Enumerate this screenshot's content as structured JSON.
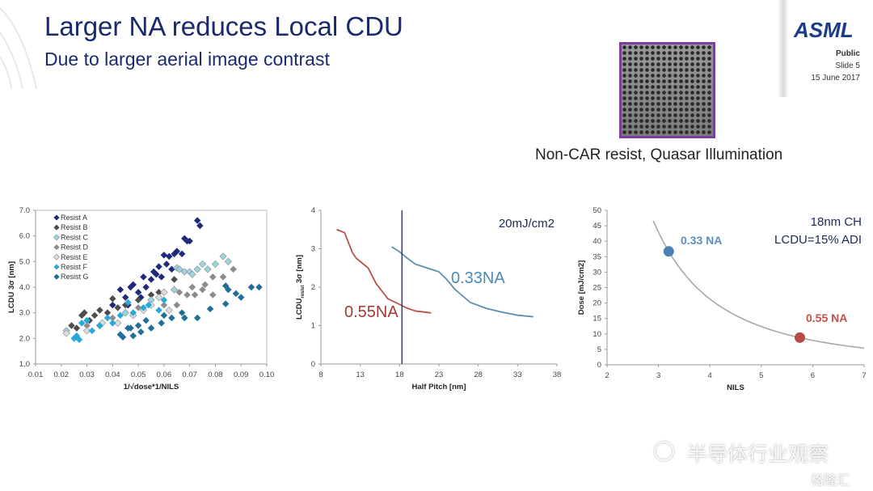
{
  "header": {
    "title": "Larger NA reduces Local CDU",
    "subtitle": "Due to larger aerial image contrast",
    "logo": "ASML",
    "classification": "Public",
    "slide": "Slide 5",
    "date": "15 June 2017"
  },
  "image_caption": "Non-CAR resist, Quasar Illumination",
  "watermark": {
    "channel": "半导体行业观察",
    "source": "格隆汇"
  },
  "colors": {
    "title": "#1b2a6b",
    "na033": "#4a82b4",
    "na055": "#b0403a",
    "frame": "#7b3f9a"
  },
  "chart_data": [
    {
      "type": "scatter",
      "xlabel": "1/√dose*1/NILS",
      "ylabel": "LCDU 3σ [nm]",
      "xlim": [
        0.01,
        0.1
      ],
      "ylim": [
        1.0,
        7.0
      ],
      "xticks": [
        "0.01",
        "0.02",
        "0.03",
        "0.04",
        "0.05",
        "0.06",
        "0.07",
        "0.08",
        "0.09",
        "0.10"
      ],
      "yticks": [
        "1.0",
        "2.0",
        "3.0",
        "4.0",
        "5.0",
        "6.0",
        "7.0"
      ],
      "legend_position": "top-left",
      "series": [
        {
          "name": "Resist A",
          "color": "#1f2a7a",
          "points": [
            [
              0.04,
              3.3
            ],
            [
              0.043,
              3.9
            ],
            [
              0.045,
              3.6
            ],
            [
              0.046,
              3.3
            ],
            [
              0.047,
              4.0
            ],
            [
              0.048,
              4.1
            ],
            [
              0.05,
              3.8
            ],
            [
              0.051,
              3.6
            ],
            [
              0.052,
              4.4
            ],
            [
              0.053,
              4.0
            ],
            [
              0.055,
              4.3
            ],
            [
              0.056,
              4.6
            ],
            [
              0.057,
              4.5
            ],
            [
              0.058,
              4.8
            ],
            [
              0.059,
              4.4
            ],
            [
              0.06,
              5.25
            ],
            [
              0.061,
              4.9
            ],
            [
              0.062,
              5.2
            ],
            [
              0.063,
              4.7
            ],
            [
              0.064,
              5.3
            ],
            [
              0.065,
              5.4
            ],
            [
              0.067,
              5.3
            ],
            [
              0.068,
              5.9
            ],
            [
              0.069,
              5.8
            ],
            [
              0.07,
              5.8
            ],
            [
              0.073,
              6.6
            ],
            [
              0.074,
              6.4
            ]
          ]
        },
        {
          "name": "Resist B",
          "color": "#4d4d4d",
          "points": [
            [
              0.024,
              2.5
            ],
            [
              0.026,
              2.4
            ],
            [
              0.028,
              2.9
            ],
            [
              0.029,
              3.0
            ],
            [
              0.031,
              2.7
            ],
            [
              0.033,
              2.9
            ],
            [
              0.035,
              3.1
            ],
            [
              0.038,
              3.0
            ],
            [
              0.04,
              3.55
            ],
            [
              0.042,
              3.2
            ],
            [
              0.045,
              3.3
            ],
            [
              0.05,
              3.5
            ],
            [
              0.055,
              3.7
            ],
            [
              0.058,
              3.8
            ],
            [
              0.064,
              4.3
            ]
          ]
        },
        {
          "name": "Resist C",
          "color": "#9dd3df",
          "points": [
            [
              0.022,
              2.3
            ],
            [
              0.035,
              2.5
            ],
            [
              0.045,
              3.0
            ],
            [
              0.055,
              3.5
            ],
            [
              0.064,
              3.9
            ],
            [
              0.065,
              4.75
            ],
            [
              0.066,
              4.7
            ],
            [
              0.068,
              4.6
            ],
            [
              0.07,
              4.6
            ],
            [
              0.071,
              4.5
            ],
            [
              0.073,
              4.7
            ],
            [
              0.075,
              4.9
            ],
            [
              0.077,
              4.7
            ],
            [
              0.08,
              4.9
            ],
            [
              0.083,
              5.2
            ],
            [
              0.085,
              5.0
            ]
          ]
        },
        {
          "name": "Resist D",
          "color": "#8c8c8c",
          "points": [
            [
              0.03,
              2.5
            ],
            [
              0.04,
              2.8
            ],
            [
              0.05,
              3.2
            ],
            [
              0.06,
              3.3
            ],
            [
              0.065,
              3.3
            ],
            [
              0.066,
              3.8
            ],
            [
              0.069,
              3.7
            ],
            [
              0.071,
              4.0
            ],
            [
              0.072,
              3.7
            ],
            [
              0.075,
              3.9
            ],
            [
              0.076,
              4.1
            ],
            [
              0.079,
              4.4
            ],
            [
              0.079,
              3.7
            ],
            [
              0.083,
              4.4
            ],
            [
              0.087,
              4.7
            ]
          ]
        },
        {
          "name": "Resist E",
          "color": "#dcdcdc",
          "points": [
            [
              0.022,
              2.2
            ],
            [
              0.03,
              2.3
            ],
            [
              0.036,
              2.6
            ],
            [
              0.042,
              2.6
            ],
            [
              0.048,
              2.9
            ],
            [
              0.052,
              3.1
            ],
            [
              0.055,
              3.3
            ],
            [
              0.058,
              3.6
            ],
            [
              0.06,
              3.8
            ],
            [
              0.062,
              3.1
            ]
          ]
        },
        {
          "name": "Resist F",
          "color": "#2aa8d8",
          "points": [
            [
              0.025,
              2.0
            ],
            [
              0.026,
              2.1
            ],
            [
              0.027,
              1.95
            ],
            [
              0.028,
              2.6
            ],
            [
              0.03,
              2.7
            ],
            [
              0.032,
              2.3
            ],
            [
              0.035,
              2.5
            ],
            [
              0.038,
              2.8
            ],
            [
              0.04,
              2.6
            ],
            [
              0.043,
              2.9
            ],
            [
              0.046,
              3.4
            ],
            [
              0.048,
              3.0
            ],
            [
              0.052,
              3.2
            ],
            [
              0.054,
              3.3
            ],
            [
              0.058,
              3.1
            ],
            [
              0.06,
              3.5
            ]
          ]
        },
        {
          "name": "Resist G",
          "color": "#1f6f98",
          "points": [
            [
              0.043,
              2.15
            ],
            [
              0.044,
              2.05
            ],
            [
              0.046,
              2.4
            ],
            [
              0.047,
              2.4
            ],
            [
              0.048,
              2.1
            ],
            [
              0.05,
              2.5
            ],
            [
              0.051,
              2.25
            ],
            [
              0.053,
              2.7
            ],
            [
              0.055,
              2.4
            ],
            [
              0.059,
              2.6
            ],
            [
              0.06,
              2.9
            ],
            [
              0.063,
              2.8
            ],
            [
              0.067,
              3.0
            ],
            [
              0.068,
              2.8
            ],
            [
              0.073,
              2.8
            ],
            [
              0.078,
              3.15
            ],
            [
              0.084,
              4.05
            ],
            [
              0.084,
              3.35
            ],
            [
              0.085,
              3.9
            ],
            [
              0.088,
              3.75
            ],
            [
              0.09,
              3.6
            ],
            [
              0.094,
              4.0
            ],
            [
              0.097,
              4.0
            ]
          ]
        }
      ]
    },
    {
      "type": "line",
      "xlabel": "Half Pitch [nm]",
      "ylabel_main": "LCDU",
      "ylabel_sub": "resist",
      "ylabel_tail": " 3σ [nm]",
      "xlim": [
        8,
        38
      ],
      "ylim": [
        0,
        4
      ],
      "xticks": [
        "8",
        "13",
        "18",
        "23",
        "28",
        "33",
        "38"
      ],
      "yticks": [
        "0",
        "1",
        "2",
        "3",
        "4"
      ],
      "annotation": "20mJ/cm2",
      "marker_line_x": 18.3,
      "series": [
        {
          "name": "0.55NA",
          "color": "#b8524a",
          "points": [
            [
              10,
              3.5
            ],
            [
              11,
              3.42
            ],
            [
              12,
              2.9
            ],
            [
              12.5,
              2.75
            ],
            [
              14,
              2.5
            ],
            [
              15,
              2.1
            ],
            [
              16.5,
              1.7
            ],
            [
              18,
              1.55
            ],
            [
              19,
              1.45
            ],
            [
              20,
              1.38
            ],
            [
              22,
              1.33
            ]
          ]
        },
        {
          "name": "0.33NA",
          "color": "#5b8fb0",
          "points": [
            [
              17,
              3.05
            ],
            [
              18,
              2.92
            ],
            [
              19,
              2.75
            ],
            [
              20,
              2.6
            ],
            [
              21.5,
              2.5
            ],
            [
              23,
              2.4
            ],
            [
              24,
              2.2
            ],
            [
              25,
              1.95
            ],
            [
              27,
              1.6
            ],
            [
              29,
              1.45
            ],
            [
              31,
              1.35
            ],
            [
              33,
              1.27
            ],
            [
              35,
              1.23
            ]
          ]
        }
      ]
    },
    {
      "type": "line",
      "xlabel": "NILS",
      "ylabel": "Dose [mJ/cm2]",
      "xlim": [
        2,
        7
      ],
      "ylim": [
        0,
        50
      ],
      "xticks": [
        "2",
        "3",
        "4",
        "5",
        "6",
        "7"
      ],
      "yticks": [
        "0",
        "5",
        "10",
        "15",
        "20",
        "25",
        "30",
        "35",
        "40",
        "45",
        "50"
      ],
      "annotation_line1": "18nm CH",
      "annotation_line2": "LCDU=15% ADI",
      "curve": [
        [
          2.9,
          46.6
        ],
        [
          3.2,
          36.7
        ],
        [
          3.5,
          29.5
        ],
        [
          4,
          21.3
        ],
        [
          4.5,
          16.0
        ],
        [
          5,
          12.4
        ],
        [
          5.5,
          9.8
        ],
        [
          6,
          7.9
        ],
        [
          6.5,
          6.5
        ],
        [
          7,
          5.4
        ]
      ],
      "markers": [
        {
          "label": "0.33 NA",
          "x": 3.2,
          "y": 36.7,
          "color": "#4a82b4"
        },
        {
          "label": "0.55 NA",
          "x": 5.75,
          "y": 8.8,
          "color": "#b84a44"
        }
      ]
    }
  ]
}
